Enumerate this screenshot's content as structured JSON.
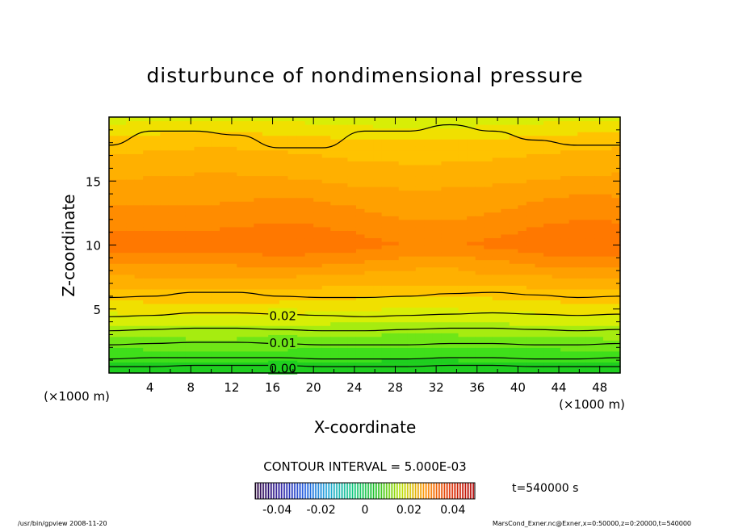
{
  "chart_data": {
    "type": "heatmap",
    "title": "disturbunce of nondimensional pressure",
    "xlabel": "X-coordinate",
    "ylabel": "Z-coordinate",
    "x_unit": "(×1000 m)",
    "y_unit": "(×1000 m)",
    "xlim": [
      0,
      50
    ],
    "ylim": [
      0,
      20
    ],
    "x_ticks": [
      4,
      8,
      12,
      16,
      20,
      24,
      28,
      32,
      36,
      40,
      44,
      48
    ],
    "y_ticks": [
      5,
      10,
      15
    ],
    "contour_interval_label": "CONTOUR INTERVAL = 5.000E-03",
    "time_label": "t=540000 s",
    "colorbar_ticks": [
      "-0.04",
      "-0.02",
      "0",
      "0.02",
      "0.04"
    ],
    "colorbar_range": [
      -0.05,
      0.05
    ],
    "contour_labels": [
      {
        "text": "0.02",
        "x": 17,
        "z": 4.5
      },
      {
        "text": "0.01",
        "x": 17,
        "z": 2.4
      },
      {
        "text": "0.00",
        "x": 17,
        "z": 0.4
      }
    ],
    "contour_lines": [
      {
        "value": 0.0,
        "z": [
          0.5,
          0.5,
          0.6,
          0.6,
          0.6,
          0.5,
          0.5,
          0.5,
          0.6,
          0.6,
          0.5,
          0.5,
          0.5
        ]
      },
      {
        "value": 0.005,
        "z": [
          1.1,
          1.2,
          1.2,
          1.2,
          1.2,
          1.1,
          1.1,
          1.1,
          1.2,
          1.2,
          1.1,
          1.1,
          1.2
        ]
      },
      {
        "value": 0.01,
        "z": [
          2.2,
          2.3,
          2.4,
          2.4,
          2.3,
          2.2,
          2.2,
          2.2,
          2.3,
          2.3,
          2.2,
          2.2,
          2.3
        ]
      },
      {
        "value": 0.015,
        "z": [
          3.3,
          3.4,
          3.5,
          3.5,
          3.4,
          3.3,
          3.3,
          3.4,
          3.5,
          3.5,
          3.4,
          3.3,
          3.4
        ]
      },
      {
        "value": 0.02,
        "z": [
          4.4,
          4.5,
          4.7,
          4.7,
          4.6,
          4.5,
          4.4,
          4.5,
          4.6,
          4.7,
          4.6,
          4.5,
          4.6
        ]
      },
      {
        "value": 0.025,
        "z": [
          5.9,
          6.0,
          6.3,
          6.3,
          6.0,
          5.9,
          5.9,
          6.0,
          6.2,
          6.3,
          6.1,
          5.9,
          6.0
        ]
      },
      {
        "value": 0.025,
        "z": [
          17.8,
          18.9,
          18.9,
          18.6,
          17.6,
          17.6,
          18.9,
          18.9,
          19.4,
          18.9,
          18.2,
          17.8,
          17.8
        ]
      }
    ],
    "field_bands": [
      {
        "value": 0.002,
        "color": "#1fcf1f"
      },
      {
        "value": 0.006,
        "color": "#3fdf1a"
      },
      {
        "value": 0.01,
        "color": "#6fe617"
      },
      {
        "value": 0.014,
        "color": "#a6ec10"
      },
      {
        "value": 0.018,
        "color": "#d8ee06"
      },
      {
        "value": 0.022,
        "color": "#f0e000"
      },
      {
        "value": 0.026,
        "color": "#ffc300"
      },
      {
        "value": 0.03,
        "color": "#ffb000"
      },
      {
        "value": 0.034,
        "color": "#ffa000"
      },
      {
        "value": 0.038,
        "color": "#ff8c00"
      },
      {
        "value": 0.042,
        "color": "#ff7800"
      }
    ],
    "colors": {
      "colorbar": [
        "#2a0040",
        "#3020a0",
        "#1f5ae0",
        "#20a8d8",
        "#10c880",
        "#20c020",
        "#b8e000",
        "#ff9000",
        "#e03000",
        "#b00000"
      ]
    }
  },
  "footer": {
    "left": "/usr/bin/gpview   2008-11-20",
    "right": "MarsCond_Exner.nc@Exner,x=0:50000,z=0:20000,t=540000"
  }
}
